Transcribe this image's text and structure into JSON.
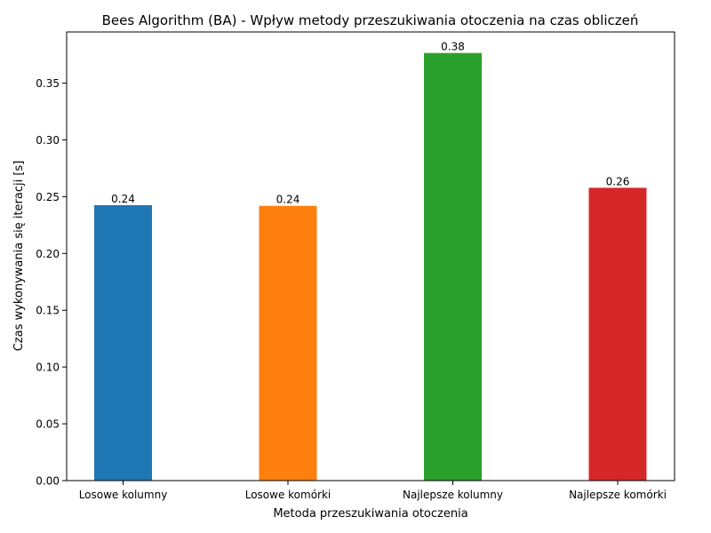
{
  "chart_data": {
    "type": "bar",
    "title": "Bees Algorithm (BA) - Wpływ metody przeszukiwania otoczenia na czas obliczeń",
    "xlabel": "Metoda przeszukiwania otoczenia",
    "ylabel": "Czas wykonywania się iteracji [s]",
    "categories": [
      "Losowe kolumny",
      "Losowe komórki",
      "Najlepsze kolumny",
      "Najlepsze komórki"
    ],
    "values": [
      0.2425,
      0.2419,
      0.3765,
      0.2578
    ],
    "value_labels": [
      "0.24",
      "0.24",
      "0.38",
      "0.26"
    ],
    "colors": [
      "#1f77b4",
      "#ff7f0e",
      "#2ca02c",
      "#d62728"
    ],
    "ylim": [
      0,
      0.395
    ],
    "yticks": [
      0.0,
      0.05,
      0.1,
      0.15,
      0.2,
      0.25,
      0.3,
      0.35
    ],
    "ytick_labels": [
      "0.00",
      "0.05",
      "0.10",
      "0.15",
      "0.20",
      "0.25",
      "0.30",
      "0.35"
    ],
    "grid": false,
    "legend": "none"
  }
}
